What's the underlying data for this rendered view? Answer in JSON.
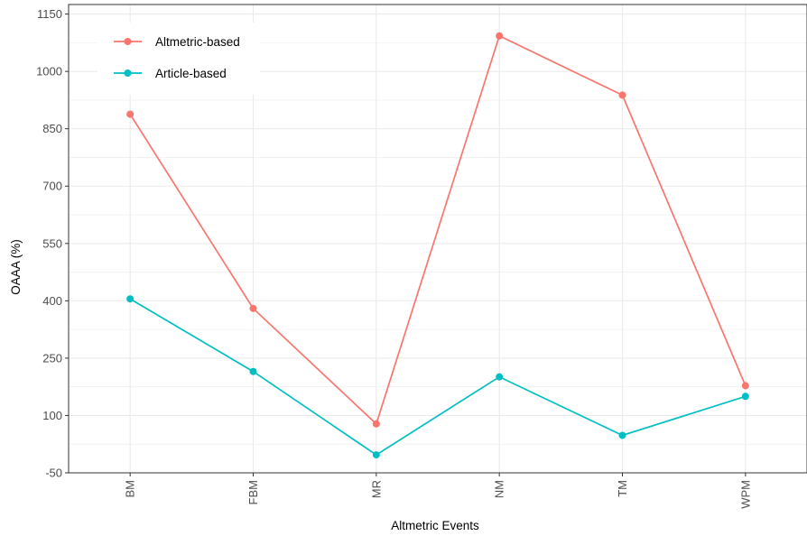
{
  "chart_data": {
    "type": "line",
    "xlabel": "Altmetric Events",
    "ylabel": "OAAA (%)",
    "categories": [
      "BM",
      "FBM",
      "MR",
      "NM",
      "TM",
      "WPM"
    ],
    "yticks": [
      -50,
      100,
      250,
      400,
      550,
      700,
      850,
      1000,
      1150
    ],
    "ylim": [
      -50,
      1175
    ],
    "grid": true,
    "legend_position": "top-left",
    "series": [
      {
        "name": "Altmetric-based",
        "color": "#F8766D",
        "values": [
          888,
          380,
          78,
          1093,
          938,
          178
        ]
      },
      {
        "name": "Article-based",
        "color": "#00BFC4",
        "values": [
          405,
          215,
          -3,
          201,
          48,
          150
        ]
      }
    ]
  }
}
